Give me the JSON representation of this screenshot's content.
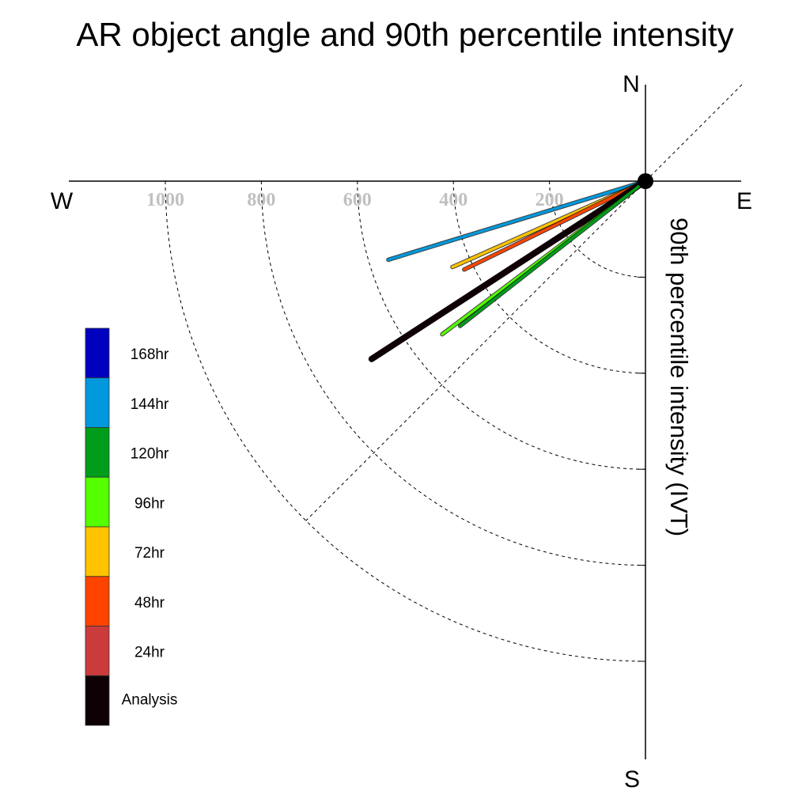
{
  "chart_data": {
    "type": "polar-vector",
    "title": "AR object angle and 90th percentile intensity",
    "directions": {
      "north": "N",
      "east": "E",
      "south": "S",
      "west": "W"
    },
    "radial_axis_label": "90th percentile intensity (IVT)",
    "radial_ticks": [
      200,
      400,
      600,
      800,
      1000
    ],
    "radial_tick_labels": [
      "200",
      "400",
      "600",
      "800",
      "1000"
    ],
    "grid": true,
    "legend_position": "left",
    "legend": [
      {
        "label": "168hr",
        "color": "#0000bf"
      },
      {
        "label": "144hr",
        "color": "#0099dd"
      },
      {
        "label": "120hr",
        "color": "#009d1a"
      },
      {
        "label": "96hr",
        "color": "#55ff00"
      },
      {
        "label": "72hr",
        "color": "#ffc300"
      },
      {
        "label": "48hr",
        "color": "#ff4400"
      },
      {
        "label": "24hr",
        "color": "#cc3b3b"
      },
      {
        "label": "Analysis",
        "color": "#0e0005"
      }
    ],
    "series": [
      {
        "name": "144hr",
        "angle_deg": 253,
        "intensity": 560,
        "color": "#0099dd"
      },
      {
        "name": "72hr",
        "angle_deg": 246,
        "intensity": 440,
        "color": "#ffc300"
      },
      {
        "name": "48hr",
        "angle_deg": 244,
        "intensity": 420,
        "color": "#ff4400"
      },
      {
        "name": "24hr",
        "angle_deg": 237,
        "intensity": 660,
        "color": "#cc3b3b"
      },
      {
        "name": "Analysis",
        "angle_deg": 237,
        "intensity": 680,
        "color": "#0e0005"
      },
      {
        "name": "96hr",
        "angle_deg": 233,
        "intensity": 530,
        "color": "#55ff00"
      },
      {
        "name": "120hr",
        "angle_deg": 232,
        "intensity": 490,
        "color": "#009d1a"
      }
    ]
  }
}
